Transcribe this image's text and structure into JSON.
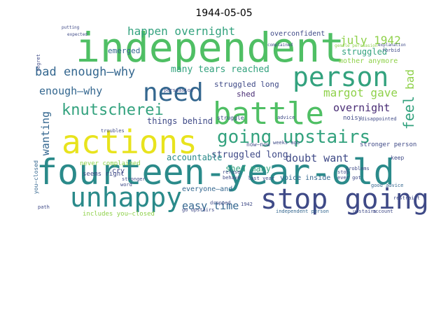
{
  "title": "1944-05-05",
  "colors": {
    "green": "#4fbf64",
    "lime": "#8fd14a",
    "yellow": "#e8e31d",
    "teal": "#2a8a8a",
    "blue": "#34678f",
    "indigo": "#3f4a87",
    "purple": "#482c74",
    "sea": "#33a27e"
  },
  "words": {
    "independent": "independent",
    "fourteen_year_old": "fourteen-year-old",
    "actions": "actions",
    "battle": "battle",
    "unhappy": "unhappy",
    "stop_going": "stop going",
    "person": "person",
    "need": "need",
    "going_upstairs": "going upstairs",
    "knutscherei": "knutscherei",
    "happen_overnight": "happen overnight",
    "july_1942": "july 1942",
    "bad_enough_why": "bad enough—why",
    "enough_why": "enough—why",
    "margot_gave": "margot gave",
    "overnight": "overnight",
    "feel": "feel",
    "bad": "bad",
    "wanting": "wanting",
    "doubt_want": "doubt want",
    "easy_time": "easy time",
    "struggled_long": "struggled long",
    "struggled": "struggled",
    "many_tears_reached": "many tears reached",
    "things_behind": "things behind",
    "shed_many": "shed many",
    "shed": "shed",
    "accountable": "accountable",
    "emerged": "emerged",
    "overconfident": "overconfident",
    "mother_anymore": "mother anymore",
    "voice_inside": "voice inside",
    "everyone_and": "everyone—and",
    "seems_right": "seems right",
    "never_complained": "never complained",
    "includes_you_closed": "includes you—closed",
    "you_closed": "you—closed",
    "stronger_person": "stronger person",
    "noisy": "noisy",
    "now_now": "now—now",
    "independent_person": "independent person",
    "good_advice": "good advice",
    "restraint": "restraint",
    "cry": "cry",
    "upstairs": "upstairs",
    "account": "account",
    "last_year": "last year",
    "keep": "keep",
    "disappointed": "disappointed",
    "persuasion": "persuasion",
    "gentle_persuasion": "gentle persuasion",
    "explanation": "explanation",
    "complained": "complained",
    "expected": "expected",
    "putting": "putting",
    "regret": "regret",
    "struggle": "struggle",
    "advice": "advice",
    "stronger": "stronger",
    "problems": "problems",
    "troubles": "troubles",
    "refuse": "refuse",
    "behave": "behave",
    "go_upstairs": "go upstairs",
    "dropped": "dropped",
    "1942": "1942",
    "weeks_ago": "weeks ago",
    "forbid": "forbid",
    "path": "path",
    "word": "word",
    "stop": "stop",
    "ever_got": "ever got"
  }
}
